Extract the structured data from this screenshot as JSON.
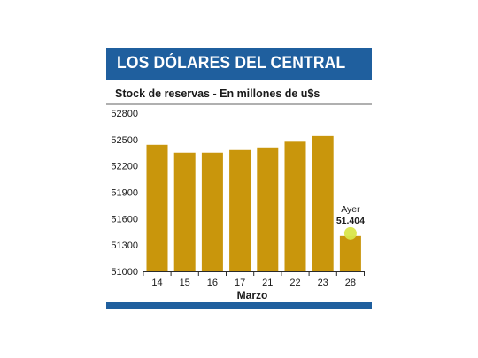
{
  "header": {
    "title": "LOS DÓLARES DEL CENTRAL",
    "subtitle": "Stock de reservas - En millones de u$s"
  },
  "colors": {
    "header_bar": "#1f5f9e",
    "bar": "#c9960c",
    "highlight_dot": "#d9e64a",
    "rule": "#b0b0b0"
  },
  "chart_data": {
    "type": "bar",
    "title": "LOS DÓLARES DEL CENTRAL",
    "subtitle": "Stock de reservas - En millones de u$s",
    "xlabel": "Marzo",
    "ylabel": "",
    "categories": [
      "14",
      "15",
      "16",
      "17",
      "21",
      "22",
      "23",
      "28"
    ],
    "values": [
      52440,
      52350,
      52350,
      52380,
      52410,
      52475,
      52540,
      51404
    ],
    "ylim": [
      51000,
      52800
    ],
    "yticks": [
      "52800",
      "52500",
      "52200",
      "51900",
      "51600",
      "51300",
      "51000"
    ],
    "grid": false,
    "annotation": {
      "category": "28",
      "label": "Ayer",
      "value_label": "51.404"
    }
  }
}
